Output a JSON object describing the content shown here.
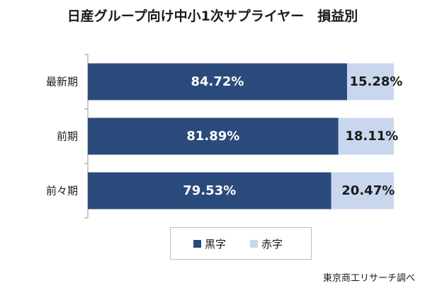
{
  "title": "日産グループ向け中小1次サプライヤー　損益別",
  "source": "東京商工リサーチ調べ",
  "chart_data": {
    "type": "bar",
    "orientation": "horizontal",
    "stacked": true,
    "categories": [
      "最新期",
      "前期",
      "前々期"
    ],
    "series": [
      {
        "name": "黒字",
        "values": [
          84.72,
          81.89,
          79.53
        ],
        "labels": [
          "84.72%",
          "81.89%",
          "79.53%"
        ],
        "color": "#2b4a7c"
      },
      {
        "name": "赤字",
        "values": [
          15.28,
          18.11,
          20.47
        ],
        "labels": [
          "15.28%",
          "18.11%",
          "20.47%"
        ],
        "color": "#c9d7ee"
      }
    ],
    "xlim": [
      0,
      100
    ],
    "grid": false,
    "legend_position": "bottom"
  }
}
